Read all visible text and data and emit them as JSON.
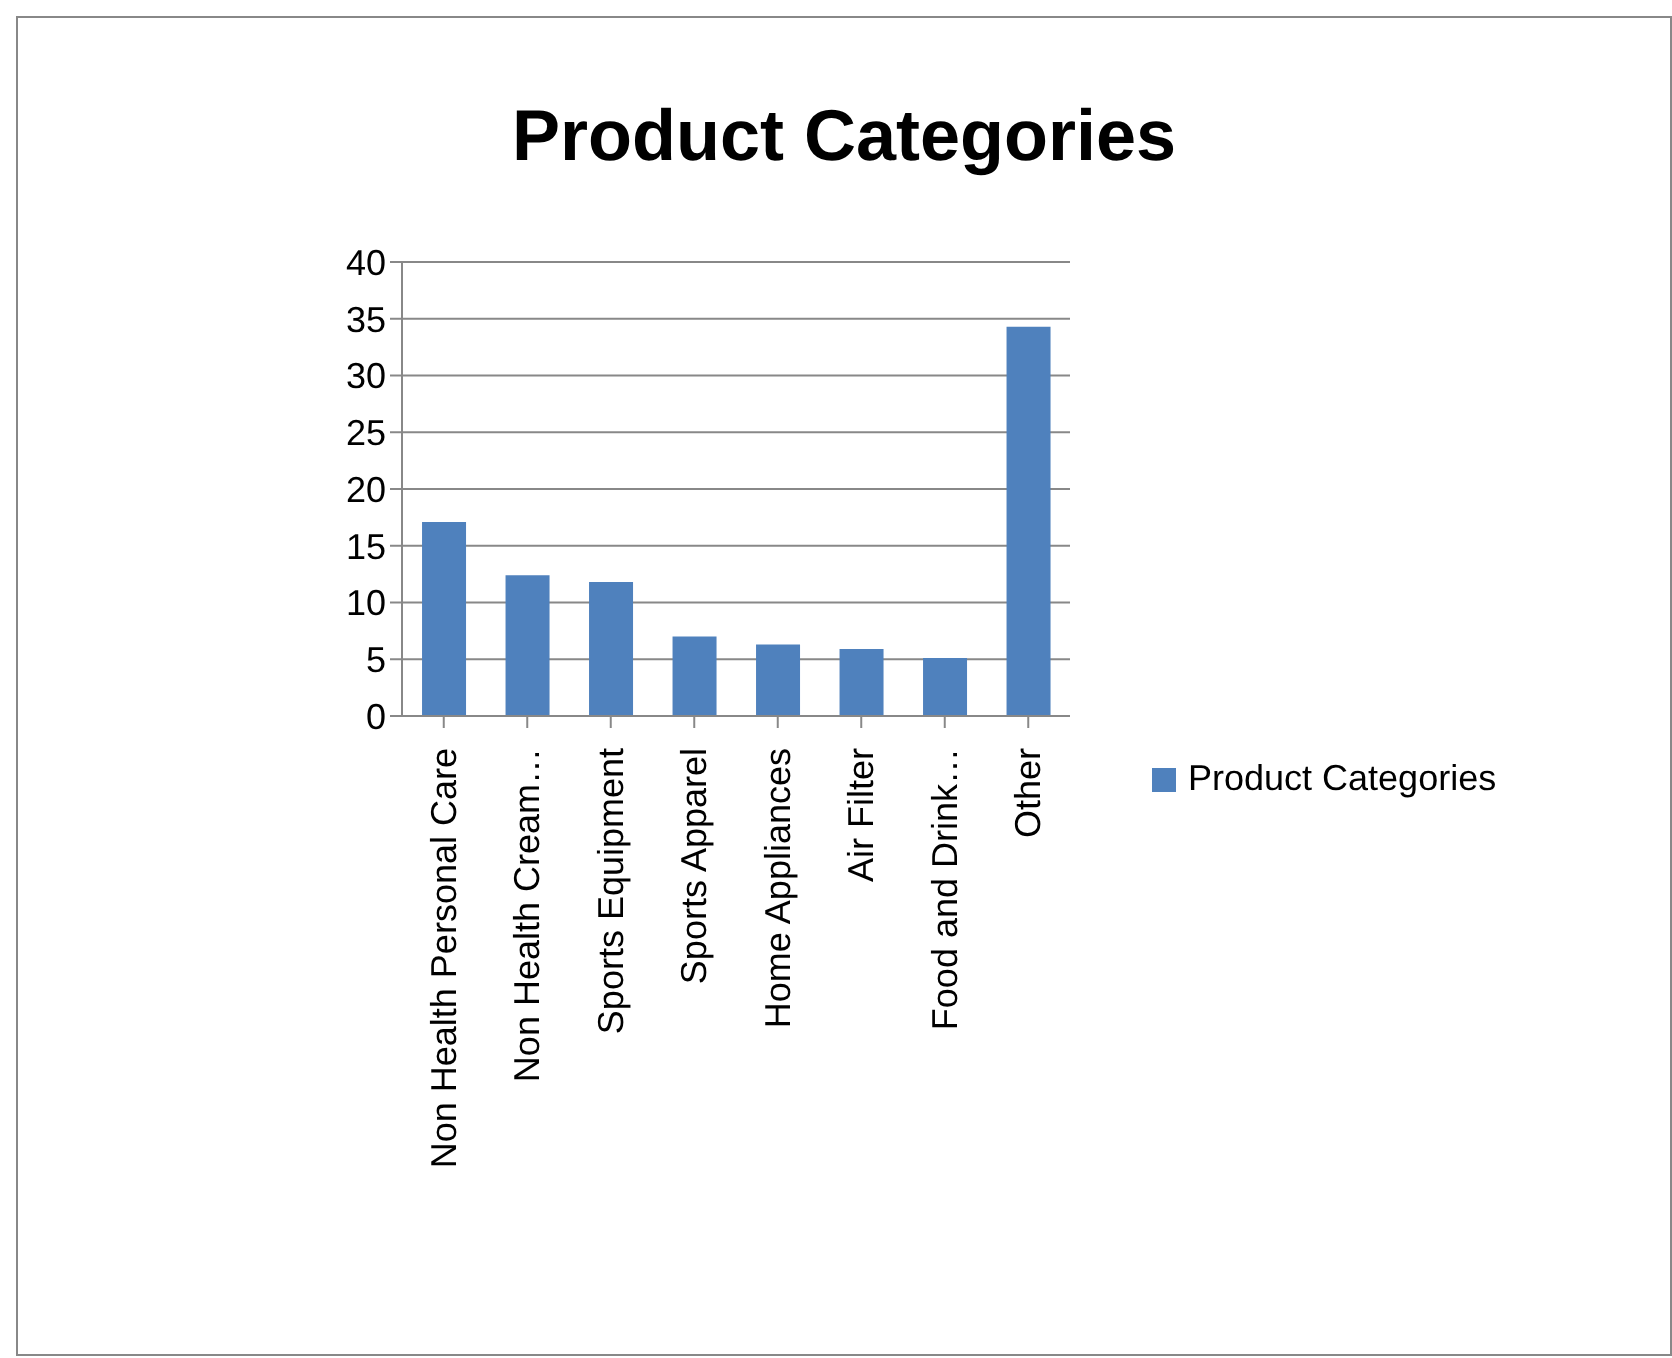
{
  "chart_data": {
    "type": "bar",
    "title": "Product Categories",
    "categories": [
      "Non Health Personal Care",
      "Non Health Cream…",
      "Sports Equipment",
      "Sports Apparel",
      "Home Appliances",
      "Air Filter",
      "Food and Drink…",
      "Other"
    ],
    "series": [
      {
        "name": "Product Categories",
        "color": "#4f81bd",
        "values": [
          17.1,
          12.4,
          11.8,
          7.0,
          6.3,
          5.9,
          5.1,
          34.3
        ]
      }
    ],
    "ylim": [
      0,
      40
    ],
    "yticks": [
      0,
      5,
      10,
      15,
      20,
      25,
      30,
      35,
      40
    ],
    "grid": "y",
    "legend": "right"
  }
}
